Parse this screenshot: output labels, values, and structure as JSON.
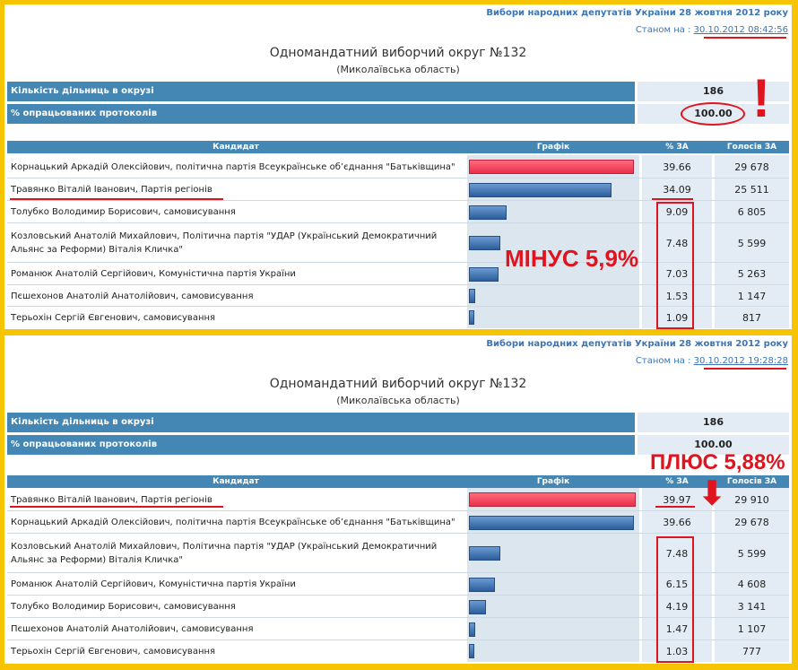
{
  "panels": [
    {
      "title": "Вибори народних депутатів України 28 жовтня 2012 року",
      "status_prefix": "Станом на :",
      "status_time": "30.10.2012 08:42:56",
      "district": "Одномандатний виборчий округ №132",
      "region": "(Миколаївська область)",
      "stations_label": "Кількість дільниць в окрузі",
      "stations_value": "186",
      "processed_label": "% опрацьованих протоколів",
      "processed_value": "100.00",
      "headers": {
        "candidate": "Кандидат",
        "chart": "Графік",
        "pct": "% ЗА",
        "votes": "Голосів ЗА"
      },
      "rows": [
        {
          "name": "Корнацький Аркадій Олексійович, політична партія Всеукраїнське об’єднання \"Батьківщина\"",
          "pct": "39.66",
          "votes": "29 678"
        },
        {
          "name": "Травянко Віталій Іванович, Партія регіонів",
          "pct": "34.09",
          "votes": "25 511"
        },
        {
          "name": "Толубко Володимир Борисович, самовисування",
          "pct": "9.09",
          "votes": "6 805"
        },
        {
          "name": "Козловський Анатолій Михайлович, Політична партія \"УДАР (Український Демократичний Альянс за Реформи) Віталія Кличка\"",
          "pct": "7.48",
          "votes": "5 599"
        },
        {
          "name": "Романюк Анатолій Сергійович, Комуністична партія України",
          "pct": "7.03",
          "votes": "5 263"
        },
        {
          "name": "Пєшехонов Анатолій Анатолійович, самовисування",
          "pct": "1.53",
          "votes": "1 147"
        },
        {
          "name": "Терьохін Сергій Євгенович, самовисування",
          "pct": "1.09",
          "votes": "817"
        }
      ],
      "annotation": "МІНУС 5,9%",
      "exclaim": "!"
    },
    {
      "title": "Вибори народних депутатів України 28 жовтня 2012 року",
      "status_prefix": "Станом на :",
      "status_time": "30.10.2012 19:28:28",
      "district": "Одномандатний виборчий округ №132",
      "region": "(Миколаївська область)",
      "stations_label": "Кількість дільниць в окрузі",
      "stations_value": "186",
      "processed_label": "% опрацьованих протоколів",
      "processed_value": "100.00",
      "headers": {
        "candidate": "Кандидат",
        "chart": "Графік",
        "pct": "% ЗА",
        "votes": "Голосів ЗА"
      },
      "rows": [
        {
          "name": "Травянко Віталій Іванович, Партія регіонів",
          "pct": "39.97",
          "votes": "29 910"
        },
        {
          "name": "Корнацький Аркадій Олексійович, політична партія Всеукраїнське об’єднання \"Батьківщина\"",
          "pct": "39.66",
          "votes": "29 678"
        },
        {
          "name": "Козловський Анатолій Михайлович, Політична партія \"УДАР (Український Демократичний Альянс за Реформи) Віталія Кличка\"",
          "pct": "7.48",
          "votes": "5 599"
        },
        {
          "name": "Романюк Анатолій Сергійович, Комуністична партія України",
          "pct": "6.15",
          "votes": "4 608"
        },
        {
          "name": "Толубко Володимир Борисович, самовисування",
          "pct": "4.19",
          "votes": "3 141"
        },
        {
          "name": "Пєшехонов Анатолій Анатолійович, самовисування",
          "pct": "1.47",
          "votes": "1 107"
        },
        {
          "name": "Терьохін Сергій Євгенович, самовисування",
          "pct": "1.03",
          "votes": "777"
        }
      ],
      "annotation": "ПЛЮС 5,88%",
      "arrow": "⬇"
    }
  ],
  "colors": {
    "page_bg": "#f6c400",
    "header_blue": "#4486b4",
    "cell_bg": "#e3ecf4",
    "annotation_red": "#e0141e",
    "bar_leader": "#e8304a",
    "bar_other": "#2c5e9c"
  }
}
